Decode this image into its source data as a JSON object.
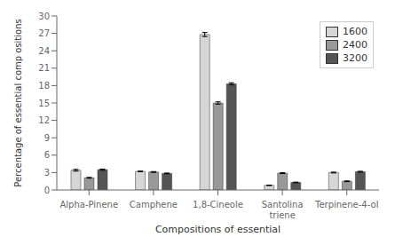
{
  "chart_data": {
    "type": "bar",
    "categories": [
      "Alpha-Pinene",
      "Camphene",
      "1,8-Cineole",
      "Santolina triene",
      "Terpinene-4-ol"
    ],
    "series": [
      {
        "name": "1600",
        "color": "#d6d6d6",
        "values": [
          3.4,
          3.2,
          26.8,
          0.8,
          3.0
        ],
        "errors": [
          0.15,
          0.05,
          0.35,
          0.04,
          0.07
        ]
      },
      {
        "name": "2400",
        "color": "#999999",
        "values": [
          2.1,
          3.1,
          15.0,
          2.9,
          1.5
        ],
        "errors": [
          0.07,
          0.07,
          0.2,
          0.08,
          0.06
        ]
      },
      {
        "name": "3200",
        "color": "#555555",
        "values": [
          3.5,
          2.85,
          18.3,
          1.3,
          3.15
        ],
        "errors": [
          0.1,
          0.07,
          0.18,
          0.06,
          0.07
        ]
      }
    ],
    "xlabel": "Compositions of essential",
    "ylabel": "Percentage of essential comp ositions",
    "ylim": [
      0,
      30
    ],
    "yticks": [
      0,
      3,
      6,
      9,
      12,
      15,
      18,
      21,
      24,
      27,
      30
    ],
    "legend": "upper right",
    "grid": false
  }
}
